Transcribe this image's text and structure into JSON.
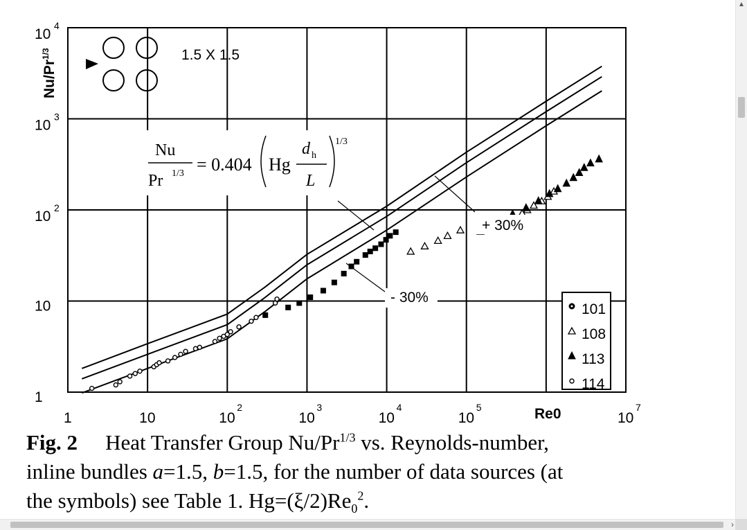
{
  "chart_data": {
    "type": "scatter",
    "scale": "log-log",
    "title": "",
    "xlabel": "Re0",
    "ylabel": "Nu/Pr^1/3",
    "xlim": [
      1,
      10000000
    ],
    "ylim": [
      1,
      10000
    ],
    "grid": true,
    "x_ticks": [
      {
        "base": "1",
        "exp": ""
      },
      {
        "base": "10",
        "exp": ""
      },
      {
        "base": "10",
        "exp": "2"
      },
      {
        "base": "10",
        "exp": "3"
      },
      {
        "base": "10",
        "exp": "4"
      },
      {
        "base": "10",
        "exp": "5"
      },
      {
        "base": "10",
        "exp": "7"
      }
    ],
    "y_ticks": [
      {
        "base": "1",
        "exp": ""
      },
      {
        "base": "10",
        "exp": ""
      },
      {
        "base": "10",
        "exp": "2"
      },
      {
        "base": "10",
        "exp": "3"
      },
      {
        "base": "10",
        "exp": "4"
      }
    ],
    "legend_position": "bottom-right",
    "series": [
      {
        "name": "101",
        "marker": "filled-circle-ring",
        "points": [
          [
            300,
            7
          ],
          [
            580,
            8.5
          ],
          [
            800,
            9.5
          ],
          [
            1100,
            11
          ],
          [
            1600,
            13
          ],
          [
            2200,
            16
          ],
          [
            2900,
            20
          ],
          [
            3600,
            24
          ],
          [
            4200,
            27
          ],
          [
            5400,
            32
          ],
          [
            6200,
            35
          ],
          [
            7200,
            38
          ],
          [
            8500,
            42
          ],
          [
            9800,
            47
          ],
          [
            11000,
            52
          ],
          [
            13000,
            57
          ]
        ]
      },
      {
        "name": "108",
        "marker": "open-triangle",
        "points": [
          [
            20000,
            35
          ],
          [
            30000,
            40
          ],
          [
            44000,
            46
          ],
          [
            58000,
            52
          ],
          [
            84000,
            60
          ],
          [
            150000,
            58
          ],
          [
            190000,
            68
          ],
          [
            320000,
            75
          ],
          [
            400000,
            82
          ],
          [
            500000,
            92
          ],
          [
            580000,
            100
          ],
          [
            700000,
            112
          ],
          [
            880000,
            125
          ],
          [
            1050000,
            140
          ],
          [
            1250000,
            160
          ]
        ]
      },
      {
        "name": "113",
        "marker": "filled-triangle",
        "points": [
          [
            150000,
            65
          ],
          [
            180000,
            72
          ],
          [
            260000,
            78
          ],
          [
            380000,
            90
          ],
          [
            560000,
            105
          ],
          [
            800000,
            125
          ],
          [
            1100000,
            150
          ],
          [
            1400000,
            170
          ],
          [
            1800000,
            195
          ],
          [
            2200000,
            225
          ],
          [
            2600000,
            255
          ],
          [
            3000000,
            290
          ],
          [
            3600000,
            325
          ],
          [
            4600000,
            360
          ]
        ]
      },
      {
        "name": "114",
        "marker": "open-circle",
        "points": [
          [
            2,
            1.1
          ],
          [
            4,
            1.2
          ],
          [
            4.5,
            1.3
          ],
          [
            6,
            1.5
          ],
          [
            7,
            1.6
          ],
          [
            8,
            1.7
          ],
          [
            12,
            1.9
          ],
          [
            13,
            2.0
          ],
          [
            14,
            2.1
          ],
          [
            18,
            2.2
          ],
          [
            22,
            2.4
          ],
          [
            26,
            2.6
          ],
          [
            30,
            2.8
          ],
          [
            40,
            3.0
          ],
          [
            45,
            3.1
          ],
          [
            70,
            3.6
          ],
          [
            80,
            3.9
          ],
          [
            90,
            4.1
          ],
          [
            100,
            4.3
          ],
          [
            110,
            4.6
          ],
          [
            140,
            5.2
          ],
          [
            200,
            6.0
          ],
          [
            230,
            6.6
          ],
          [
            400,
            9.5
          ],
          [
            420,
            10.5
          ]
        ]
      }
    ],
    "lines": [
      {
        "name": "correlation",
        "points": [
          [
            1.5,
            1.4
          ],
          [
            10,
            2.6
          ],
          [
            100,
            5.5
          ],
          [
            300,
            11
          ],
          [
            1000,
            25
          ],
          [
            10000,
            85
          ],
          [
            100000,
            330
          ],
          [
            1000000,
            1200
          ],
          [
            5000000,
            2900
          ]
        ]
      },
      {
        "name": "+30%",
        "points": [
          [
            1.5,
            1.82
          ],
          [
            10,
            3.4
          ],
          [
            100,
            7.2
          ],
          [
            300,
            14.3
          ],
          [
            1000,
            32.5
          ],
          [
            10000,
            110
          ],
          [
            100000,
            430
          ],
          [
            1000000,
            1560
          ],
          [
            5000000,
            3770
          ]
        ]
      },
      {
        "name": "-30%",
        "points": [
          [
            1.5,
            0.98
          ],
          [
            10,
            1.82
          ],
          [
            100,
            3.85
          ],
          [
            300,
            7.7
          ],
          [
            1000,
            17.5
          ],
          [
            10000,
            60
          ],
          [
            100000,
            230
          ],
          [
            1000000,
            840
          ],
          [
            5000000,
            2030
          ]
        ]
      }
    ],
    "annotations": {
      "geometry_label": "1.5 X 1.5",
      "plus_band": "+ 30%",
      "minus_band": "- 30%",
      "equation_lhs_num": "Nu",
      "equation_lhs_den": "Pr",
      "equation_lhs_den_exp": "1/3",
      "equation_coef": "= 0.404",
      "equation_hg": "Hg",
      "equation_dh": "d",
      "equation_dh_sub": "h",
      "equation_L": "L",
      "equation_exp": "1/3"
    }
  },
  "caption": {
    "fig_label": "Fig. 2",
    "line1": "Heat Transfer Group Nu/Pr",
    "line1_sup": "1/3",
    "line1_rest": " vs. Reynolds-number,",
    "line2_a": "inline bundles ",
    "line2_a_var": "a",
    "line2_b": "=1.5, ",
    "line2_b_var": "b",
    "line2_c": "=1.5, for the number of data sources (at",
    "line3_a": "the symbols) see Table 1. Hg=(ξ/2)Re",
    "line3_sub": "0",
    "line3_sup": "2",
    "line3_end": "."
  }
}
